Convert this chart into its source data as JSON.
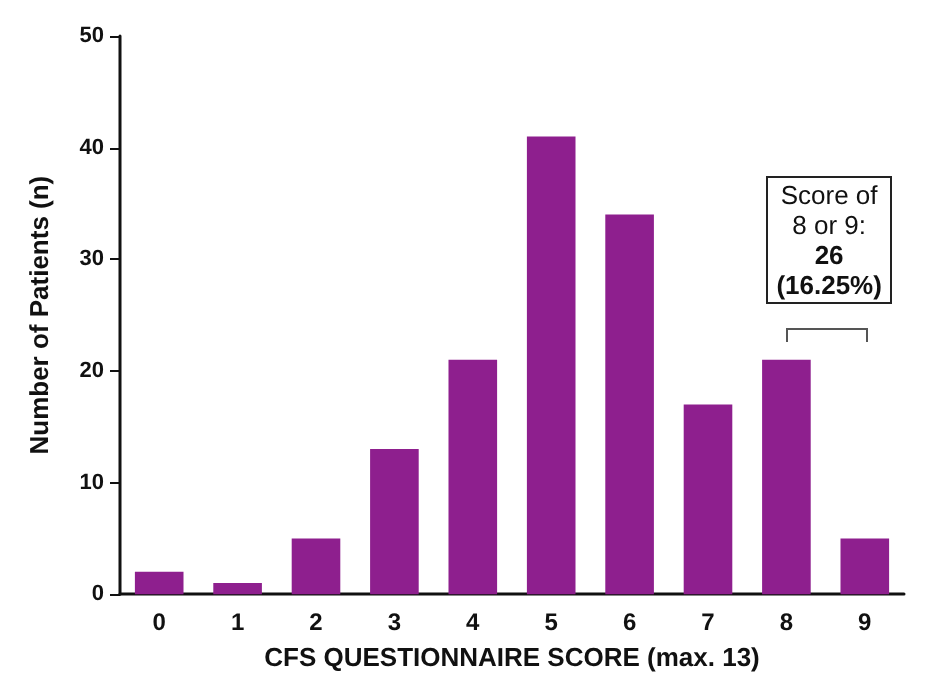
{
  "chart_data": {
    "type": "bar",
    "xlabel": "CFS QUESTIONNAIRE SCORE (max. 13)",
    "ylabel": "Number of Patients (n)",
    "categories": [
      "0",
      "1",
      "2",
      "3",
      "4",
      "5",
      "6",
      "7",
      "8",
      "9"
    ],
    "values": [
      2,
      1,
      5,
      13,
      21,
      41,
      34,
      17,
      21,
      5
    ],
    "color": "#8e1f8e",
    "ylim": [
      0,
      50
    ],
    "yticks": [
      0,
      10,
      20,
      30,
      40,
      50
    ],
    "grid": false,
    "annotations": [
      "Score of\n8 or 9:\n26\n(16.25%)"
    ]
  }
}
